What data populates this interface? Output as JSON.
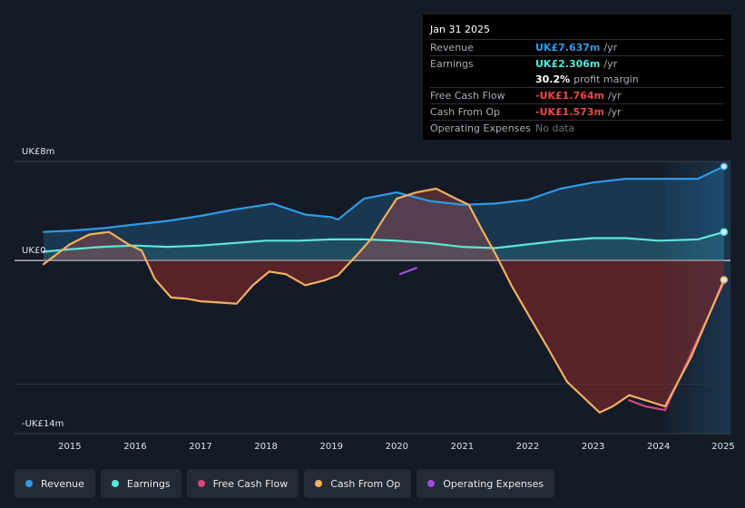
{
  "tooltip": {
    "date": "Jan 31 2025",
    "rows": [
      {
        "label": "Revenue",
        "value": "UK£7.637m",
        "unit": "/yr",
        "color": "#2e9ae6"
      },
      {
        "label": "Earnings",
        "value": "UK£2.306m",
        "unit": "/yr",
        "color": "#5ce6d9"
      },
      {
        "label": "",
        "value": "30.2%",
        "unit": "profit margin",
        "color": "#ffffff"
      },
      {
        "label": "Free Cash Flow",
        "value": "-UK£1.764m",
        "unit": "/yr",
        "color": "#e84a4a"
      },
      {
        "label": "Cash From Op",
        "value": "-UK£1.573m",
        "unit": "/yr",
        "color": "#e84a4a"
      },
      {
        "label": "Operating Expenses",
        "value": "No data",
        "unit": "",
        "color": "#6b717a"
      }
    ]
  },
  "legend": [
    {
      "label": "Revenue",
      "color": "#2e9ae6"
    },
    {
      "label": "Earnings",
      "color": "#5ce6d9"
    },
    {
      "label": "Free Cash Flow",
      "color": "#d6457e"
    },
    {
      "label": "Cash From Op",
      "color": "#f0b060"
    },
    {
      "label": "Operating Expenses",
      "color": "#a04de0"
    }
  ],
  "chart_data": {
    "type": "line",
    "ylabel_top": "UK£8m",
    "ylabel_zero": "UK£0",
    "ylabel_bottom": "-UK£14m",
    "ylim": [
      -14,
      8
    ],
    "xlim": [
      2014.6,
      2025.1
    ],
    "xtick_labels": [
      "2015",
      "2016",
      "2017",
      "2018",
      "2019",
      "2020",
      "2021",
      "2022",
      "2023",
      "2024",
      "2025"
    ],
    "forecast_start": 2024.1,
    "series": [
      {
        "name": "Revenue",
        "color": "#2e9ae6",
        "points": [
          [
            2014.6,
            2.3
          ],
          [
            2015.0,
            2.4
          ],
          [
            2015.5,
            2.6
          ],
          [
            2016.0,
            2.9
          ],
          [
            2016.5,
            3.2
          ],
          [
            2017.0,
            3.6
          ],
          [
            2017.5,
            4.1
          ],
          [
            2018.0,
            4.5
          ],
          [
            2018.1,
            4.6
          ],
          [
            2018.6,
            3.7
          ],
          [
            2019.0,
            3.5
          ],
          [
            2019.1,
            3.3
          ],
          [
            2019.5,
            5.0
          ],
          [
            2020.0,
            5.5
          ],
          [
            2020.5,
            4.8
          ],
          [
            2021.0,
            4.5
          ],
          [
            2021.5,
            4.6
          ],
          [
            2022.0,
            4.9
          ],
          [
            2022.5,
            5.8
          ],
          [
            2023.0,
            6.3
          ],
          [
            2023.5,
            6.6
          ],
          [
            2024.0,
            6.6
          ],
          [
            2024.6,
            6.6
          ],
          [
            2025.0,
            7.6
          ]
        ]
      },
      {
        "name": "Earnings",
        "color": "#5ce6d9",
        "points": [
          [
            2014.6,
            0.7
          ],
          [
            2015.0,
            0.9
          ],
          [
            2015.5,
            1.1
          ],
          [
            2016.0,
            1.2
          ],
          [
            2016.5,
            1.1
          ],
          [
            2017.0,
            1.2
          ],
          [
            2017.5,
            1.4
          ],
          [
            2018.0,
            1.6
          ],
          [
            2018.5,
            1.6
          ],
          [
            2019.0,
            1.7
          ],
          [
            2019.5,
            1.7
          ],
          [
            2020.0,
            1.6
          ],
          [
            2020.5,
            1.4
          ],
          [
            2021.0,
            1.1
          ],
          [
            2021.5,
            1.0
          ],
          [
            2022.0,
            1.3
          ],
          [
            2022.5,
            1.6
          ],
          [
            2023.0,
            1.8
          ],
          [
            2023.5,
            1.8
          ],
          [
            2024.0,
            1.6
          ],
          [
            2024.6,
            1.7
          ],
          [
            2025.0,
            2.3
          ]
        ]
      },
      {
        "name": "Free Cash Flow",
        "color": "#d6457e",
        "points": [
          [
            2023.55,
            -11.3
          ],
          [
            2023.8,
            -11.8
          ],
          [
            2024.1,
            -12.1
          ],
          [
            2024.5,
            -7.5
          ],
          [
            2025.0,
            -1.76
          ]
        ]
      },
      {
        "name": "Cash From Op",
        "color": "#f0b060",
        "points": [
          [
            2014.6,
            -0.3
          ],
          [
            2015.0,
            1.3
          ],
          [
            2015.3,
            2.1
          ],
          [
            2015.6,
            2.3
          ],
          [
            2015.9,
            1.3
          ],
          [
            2016.1,
            0.8
          ],
          [
            2016.3,
            -1.5
          ],
          [
            2016.55,
            -3.0
          ],
          [
            2016.8,
            -3.1
          ],
          [
            2017.0,
            -3.3
          ],
          [
            2017.3,
            -3.4
          ],
          [
            2017.55,
            -3.5
          ],
          [
            2017.8,
            -2.0
          ],
          [
            2018.05,
            -0.9
          ],
          [
            2018.3,
            -1.1
          ],
          [
            2018.6,
            -2.0
          ],
          [
            2018.9,
            -1.6
          ],
          [
            2019.1,
            -1.2
          ],
          [
            2019.4,
            0.5
          ],
          [
            2019.6,
            1.7
          ],
          [
            2019.8,
            3.4
          ],
          [
            2020.0,
            5.0
          ],
          [
            2020.3,
            5.5
          ],
          [
            2020.6,
            5.8
          ],
          [
            2020.9,
            5.0
          ],
          [
            2021.1,
            4.5
          ],
          [
            2021.3,
            2.5
          ],
          [
            2021.5,
            0.6
          ],
          [
            2021.75,
            -2.0
          ],
          [
            2022.0,
            -4.3
          ],
          [
            2022.3,
            -7.0
          ],
          [
            2022.6,
            -9.8
          ],
          [
            2022.9,
            -11.3
          ],
          [
            2023.1,
            -12.3
          ],
          [
            2023.3,
            -11.8
          ],
          [
            2023.55,
            -10.9
          ],
          [
            2023.8,
            -11.3
          ],
          [
            2024.1,
            -11.8
          ],
          [
            2024.5,
            -7.8
          ],
          [
            2025.0,
            -1.57
          ]
        ]
      },
      {
        "name": "Operating Expenses",
        "color": "#a04de0",
        "points": [
          [
            2020.05,
            -1.1
          ],
          [
            2020.3,
            -0.6
          ]
        ]
      }
    ],
    "end_markers": [
      {
        "series": "Revenue",
        "x": 2025.0,
        "y": 7.6
      },
      {
        "series": "Earnings",
        "x": 2025.0,
        "y": 2.3
      },
      {
        "series": "Cash From Op",
        "x": 2025.0,
        "y": -1.57
      }
    ]
  }
}
